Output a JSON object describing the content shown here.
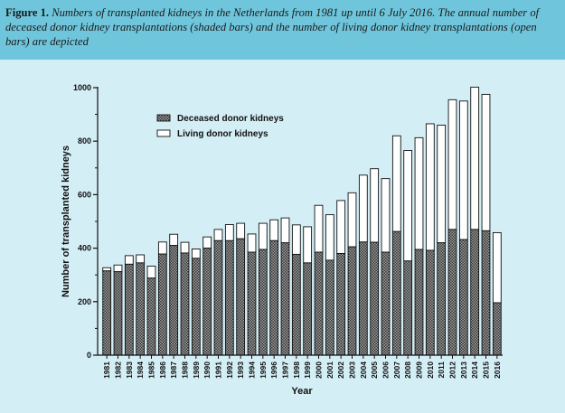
{
  "caption": {
    "label": "Figure 1.",
    "text": "Numbers of transplanted kidneys in the Netherlands from 1981 up until 6 July 2016. The annual number of deceased donor kidney transplantations (shaded bars) and the number of living donor kidney transplantations (open bars) are depicted"
  },
  "chart_data": {
    "type": "bar",
    "stacked": true,
    "xlabel": "Year",
    "ylabel": "Number of transplanted kidneys",
    "ylim": [
      0,
      1000
    ],
    "yticks": [
      0,
      200,
      400,
      600,
      800,
      1000
    ],
    "categories": [
      "1981",
      "1982",
      "1983",
      "1984",
      "1985",
      "1986",
      "1987",
      "1988",
      "1989",
      "1990",
      "1991",
      "1992",
      "1993",
      "1994",
      "1995",
      "1996",
      "1997",
      "1998",
      "1999",
      "2000",
      "2001",
      "2002",
      "2003",
      "2004",
      "2005",
      "2006",
      "2007",
      "2008",
      "2009",
      "2010",
      "2011",
      "2012",
      "2013",
      "2014",
      "2015",
      "2016"
    ],
    "series": [
      {
        "name": "Deceased donor kidneys",
        "style": "shaded",
        "color": "#7a7a7a",
        "values": [
          315,
          312,
          340,
          345,
          288,
          378,
          410,
          382,
          362,
          400,
          428,
          428,
          435,
          385,
          395,
          428,
          420,
          377,
          345,
          385,
          355,
          380,
          405,
          423,
          422,
          385,
          462,
          352,
          395,
          392,
          420,
          470,
          432,
          470,
          465,
          196
        ]
      },
      {
        "name": "Living donor kidneys",
        "style": "open",
        "color": "#ffffff",
        "values": [
          12,
          25,
          32,
          30,
          45,
          45,
          42,
          40,
          35,
          42,
          42,
          60,
          58,
          68,
          98,
          78,
          93,
          110,
          135,
          175,
          170,
          198,
          202,
          250,
          275,
          275,
          358,
          413,
          418,
          473,
          440,
          485,
          518,
          532,
          510,
          262
        ]
      }
    ],
    "legend": "top-left"
  }
}
